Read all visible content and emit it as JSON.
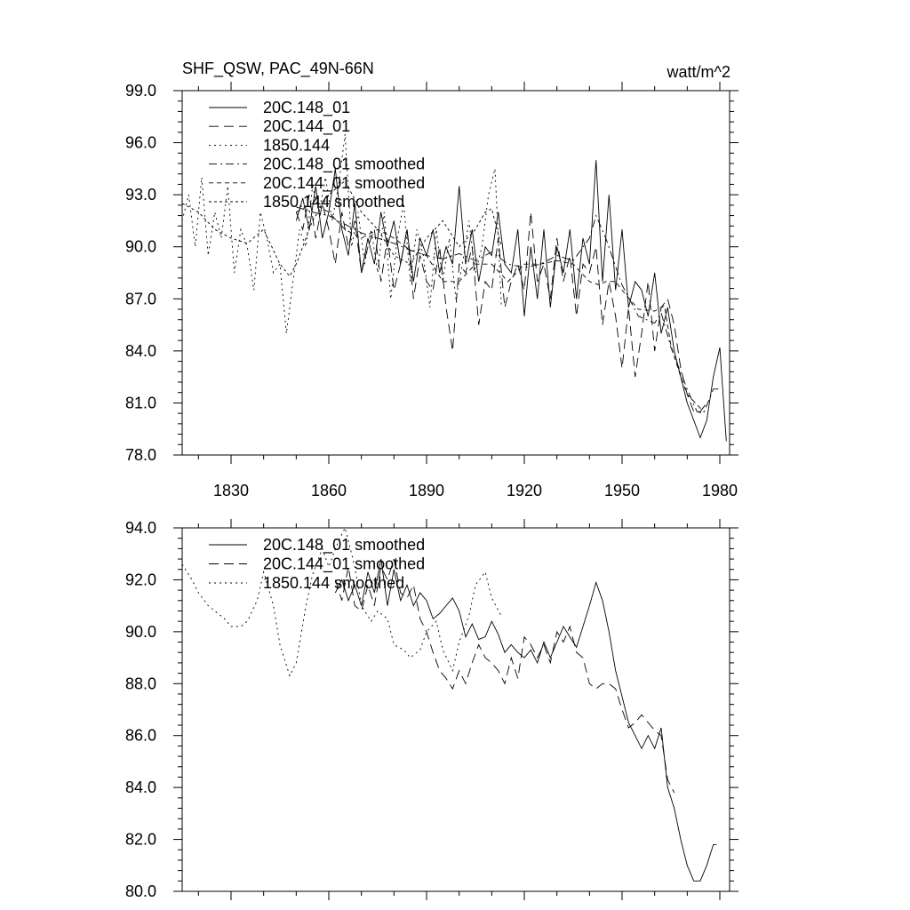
{
  "header": {
    "title": "SHF_QSW, PAC_49N-66N",
    "units": "watt/m^2"
  },
  "chart_data": [
    {
      "type": "line",
      "xlim": [
        1815,
        1983
      ],
      "ylim": [
        78.0,
        99.0
      ],
      "x_ticks": [
        1830,
        1860,
        1890,
        1920,
        1950,
        1980
      ],
      "x_tick_labels": [
        "1830",
        "1860",
        "1890",
        "1920",
        "1950",
        "1980"
      ],
      "y_ticks": [
        78.0,
        81.0,
        84.0,
        87.0,
        90.0,
        93.0,
        96.0,
        99.0
      ],
      "y_tick_labels": [
        "78.0",
        "81.0",
        "84.0",
        "87.0",
        "90.0",
        "93.0",
        "96.0",
        "99.0"
      ],
      "grid": false,
      "legend_position": "top-left",
      "series": [
        {
          "name": "20C.148_01",
          "dash": "solid",
          "x": [
            1850,
            1852,
            1854,
            1856,
            1858,
            1860,
            1862,
            1864,
            1866,
            1868,
            1870,
            1872,
            1874,
            1876,
            1878,
            1880,
            1882,
            1884,
            1886,
            1888,
            1890,
            1892,
            1894,
            1896,
            1898,
            1900,
            1902,
            1904,
            1906,
            1908,
            1910,
            1912,
            1914,
            1916,
            1918,
            1920,
            1922,
            1924,
            1926,
            1928,
            1930,
            1932,
            1934,
            1936,
            1938,
            1940,
            1942,
            1944,
            1946,
            1948,
            1950,
            1952,
            1954,
            1956,
            1958,
            1960,
            1962,
            1964,
            1966,
            1968,
            1970,
            1972,
            1974,
            1976,
            1978,
            1980,
            1982
          ],
          "y": [
            91.5,
            92.8,
            91.0,
            93.5,
            90.5,
            92.0,
            94.5,
            91.0,
            89.5,
            92.5,
            88.5,
            90.5,
            89.0,
            92.0,
            90.0,
            91.5,
            89.0,
            91.0,
            88.0,
            90.5,
            89.5,
            91.0,
            88.5,
            90.0,
            89.0,
            93.5,
            89.0,
            91.0,
            88.0,
            90.0,
            89.5,
            92.0,
            89.0,
            88.5,
            91.0,
            86.0,
            90.0,
            87.0,
            91.0,
            86.5,
            90.0,
            88.5,
            91.0,
            87.0,
            90.5,
            89.0,
            95.0,
            88.0,
            93.0,
            87.5,
            91.0,
            86.5,
            88.0,
            87.5,
            86.0,
            88.5,
            85.0,
            86.5,
            84.0,
            82.5,
            81.0,
            80.0,
            79.0,
            80.0,
            82.5,
            84.2,
            78.8
          ]
        },
        {
          "name": "20C.144_01",
          "dash": "long",
          "x": [
            1850,
            1852,
            1854,
            1856,
            1858,
            1860,
            1862,
            1864,
            1866,
            1868,
            1870,
            1872,
            1874,
            1876,
            1878,
            1880,
            1882,
            1884,
            1886,
            1888,
            1890,
            1892,
            1894,
            1896,
            1898,
            1900,
            1902,
            1904,
            1906,
            1908,
            1910,
            1912,
            1914,
            1916,
            1918,
            1920,
            1922,
            1924,
            1926,
            1928,
            1930,
            1932,
            1934,
            1936,
            1938,
            1940,
            1942,
            1944,
            1946,
            1948,
            1950,
            1952,
            1954,
            1956,
            1958,
            1960,
            1962,
            1964,
            1966,
            1968,
            1970,
            1972,
            1974,
            1976
          ],
          "y": [
            92.0,
            91.0,
            93.0,
            90.5,
            92.5,
            91.0,
            89.0,
            92.0,
            90.0,
            91.5,
            88.5,
            90.0,
            91.0,
            88.0,
            90.5,
            87.5,
            89.0,
            91.0,
            87.0,
            89.5,
            88.0,
            87.5,
            90.0,
            86.5,
            84.0,
            89.0,
            88.5,
            90.0,
            85.5,
            88.0,
            87.5,
            90.5,
            86.5,
            88.0,
            89.0,
            87.5,
            92.0,
            88.0,
            89.0,
            87.0,
            90.5,
            88.0,
            89.5,
            86.0,
            89.0,
            88.5,
            90.0,
            85.5,
            88.0,
            86.0,
            83.0,
            86.5,
            82.5,
            85.0,
            88.0,
            84.0,
            86.5,
            87.0,
            85.5,
            83.0,
            81.5,
            80.5,
            80.5,
            81.0
          ]
        },
        {
          "name": "1850.144",
          "dash": "dot",
          "x": [
            1815,
            1817,
            1819,
            1821,
            1823,
            1825,
            1827,
            1829,
            1831,
            1833,
            1835,
            1837,
            1839,
            1841,
            1843,
            1845,
            1847,
            1849,
            1851,
            1853,
            1855,
            1857,
            1859,
            1861,
            1863,
            1865,
            1867,
            1869,
            1871,
            1873,
            1875,
            1877,
            1879,
            1881,
            1883,
            1885,
            1887,
            1889,
            1891,
            1893,
            1895,
            1897,
            1899,
            1901,
            1903,
            1905,
            1907,
            1909,
            1911,
            1913
          ],
          "y": [
            91.5,
            93.0,
            90.0,
            94.0,
            89.5,
            92.0,
            90.5,
            93.5,
            88.5,
            91.0,
            90.0,
            87.5,
            92.0,
            90.5,
            88.5,
            89.0,
            85.0,
            88.0,
            91.0,
            90.0,
            93.5,
            92.0,
            94.0,
            91.5,
            93.5,
            96.5,
            90.0,
            92.0,
            89.0,
            91.0,
            88.5,
            92.0,
            87.0,
            90.5,
            92.5,
            88.0,
            91.0,
            89.5,
            86.5,
            91.0,
            88.0,
            90.5,
            87.0,
            89.0,
            91.5,
            88.5,
            90.0,
            93.0,
            94.5,
            86.5
          ]
        },
        {
          "name": "20C.148_01 smoothed",
          "dash": "dashdot",
          "x": [
            1850,
            1855,
            1860,
            1865,
            1870,
            1875,
            1880,
            1885,
            1890,
            1895,
            1900,
            1905,
            1910,
            1915,
            1920,
            1925,
            1930,
            1935,
            1940,
            1942,
            1945,
            1950,
            1955,
            1960,
            1962,
            1965,
            1970,
            1973,
            1975,
            1978,
            1980
          ],
          "y": [
            92.3,
            92.0,
            91.8,
            91.3,
            90.8,
            90.5,
            90.2,
            89.8,
            89.5,
            89.3,
            89.6,
            89.2,
            89.7,
            89.0,
            88.8,
            89.0,
            89.5,
            89.2,
            90.5,
            91.8,
            90.5,
            87.8,
            86.0,
            85.6,
            86.2,
            84.2,
            81.8,
            80.5,
            80.4,
            81.8,
            81.8
          ]
        },
        {
          "name": "20C.144_01 smoothed",
          "dash": "shortdash",
          "x": [
            1850,
            1855,
            1860,
            1865,
            1870,
            1875,
            1880,
            1885,
            1890,
            1895,
            1900,
            1905,
            1910,
            1915,
            1920,
            1925,
            1930,
            1935,
            1940,
            1943,
            1945,
            1948,
            1950,
            1955,
            1960,
            1963,
            1965,
            1968,
            1970,
            1975
          ],
          "y": [
            92.0,
            92.5,
            92.0,
            91.0,
            90.5,
            91.0,
            90.5,
            89.8,
            89.5,
            88.0,
            88.0,
            89.0,
            89.0,
            88.0,
            89.0,
            89.0,
            89.2,
            89.0,
            88.0,
            87.8,
            88.0,
            88.0,
            87.5,
            86.4,
            86.3,
            86.6,
            84.3,
            82.5,
            81.5,
            80.5
          ]
        },
        {
          "name": "1850.144 smoothed",
          "dash": "densedot",
          "x": [
            1815,
            1820,
            1825,
            1830,
            1835,
            1840,
            1845,
            1848,
            1850,
            1855,
            1860,
            1865,
            1870,
            1875,
            1880,
            1885,
            1890,
            1895,
            1900,
            1905,
            1908,
            1910,
            1913
          ],
          "y": [
            92.5,
            92.0,
            91.0,
            90.5,
            90.2,
            91.0,
            89.0,
            88.3,
            89.0,
            91.5,
            93.0,
            93.8,
            92.0,
            91.0,
            89.5,
            89.0,
            90.5,
            91.5,
            90.0,
            91.0,
            92.0,
            92.2,
            90.0
          ]
        }
      ]
    },
    {
      "type": "line",
      "xlim": [
        1815,
        1983
      ],
      "ylim": [
        80.0,
        94.0
      ],
      "x_ticks": [
        1830,
        1860,
        1890,
        1920,
        1950,
        1980
      ],
      "y_ticks": [
        80.0,
        82.0,
        84.0,
        86.0,
        88.0,
        90.0,
        92.0,
        94.0
      ],
      "y_tick_labels": [
        "80.0",
        "82.0",
        "84.0",
        "86.0",
        "88.0",
        "90.0",
        "92.0",
        "94.0"
      ],
      "grid": false,
      "legend_position": "top-left",
      "series": [
        {
          "name": "20C.148_01 smoothed",
          "dash": "solid",
          "x": [
            1862,
            1864,
            1866,
            1868,
            1870,
            1872,
            1874,
            1876,
            1878,
            1880,
            1882,
            1884,
            1886,
            1888,
            1890,
            1892,
            1894,
            1896,
            1898,
            1900,
            1902,
            1904,
            1906,
            1908,
            1910,
            1912,
            1914,
            1916,
            1918,
            1920,
            1922,
            1924,
            1926,
            1928,
            1930,
            1932,
            1934,
            1936,
            1938,
            1940,
            1942,
            1944,
            1946,
            1948,
            1950,
            1952,
            1954,
            1956,
            1958,
            1960,
            1962,
            1964,
            1966,
            1968,
            1970,
            1972,
            1974,
            1976,
            1978,
            1979
          ],
          "y": [
            91.5,
            92.0,
            91.2,
            91.8,
            91.0,
            92.3,
            91.5,
            92.8,
            91.0,
            92.4,
            91.2,
            91.8,
            91.0,
            91.5,
            91.2,
            90.5,
            90.7,
            91.0,
            91.3,
            90.8,
            89.8,
            90.3,
            89.7,
            89.8,
            90.4,
            89.9,
            89.2,
            89.5,
            89.2,
            89.0,
            89.3,
            88.8,
            89.6,
            89.0,
            89.6,
            90.2,
            89.8,
            89.4,
            90.2,
            91.0,
            91.9,
            91.2,
            90.0,
            88.5,
            87.5,
            86.5,
            86.0,
            85.5,
            86.0,
            85.5,
            86.3,
            84.0,
            83.2,
            82.0,
            81.0,
            80.4,
            80.4,
            81.0,
            81.8,
            81.8
          ]
        },
        {
          "name": "20C.144_01 smoothed",
          "dash": "long",
          "x": [
            1862,
            1864,
            1866,
            1868,
            1870,
            1872,
            1874,
            1876,
            1878,
            1880,
            1882,
            1884,
            1886,
            1888,
            1890,
            1892,
            1894,
            1896,
            1898,
            1900,
            1902,
            1904,
            1906,
            1908,
            1910,
            1912,
            1914,
            1916,
            1918,
            1920,
            1922,
            1924,
            1926,
            1928,
            1930,
            1932,
            1934,
            1936,
            1938,
            1940,
            1942,
            1944,
            1946,
            1948,
            1950,
            1952,
            1954,
            1956,
            1958,
            1960,
            1962,
            1964,
            1966
          ],
          "y": [
            92.0,
            91.2,
            92.5,
            91.0,
            90.8,
            91.8,
            91.0,
            92.5,
            92.0,
            92.8,
            91.5,
            91.3,
            91.8,
            90.5,
            90.0,
            89.2,
            88.5,
            88.2,
            87.8,
            88.5,
            88.0,
            88.8,
            89.5,
            89.0,
            88.8,
            88.5,
            88.0,
            89.0,
            88.2,
            89.8,
            89.5,
            89.0,
            89.5,
            88.8,
            90.0,
            89.6,
            90.2,
            89.2,
            89.0,
            88.0,
            87.8,
            88.0,
            88.0,
            87.8,
            87.0,
            86.3,
            86.5,
            86.8,
            86.5,
            86.2,
            86.0,
            84.3,
            83.8
          ]
        },
        {
          "name": "1850.144 smoothed",
          "dash": "dot",
          "x": [
            1815,
            1818,
            1820,
            1823,
            1825,
            1828,
            1830,
            1833,
            1835,
            1838,
            1840,
            1843,
            1845,
            1848,
            1850,
            1853,
            1855,
            1858,
            1860,
            1863,
            1865,
            1868,
            1870,
            1873,
            1875,
            1878,
            1880,
            1883,
            1885,
            1888,
            1890,
            1893,
            1895,
            1898,
            1900,
            1903,
            1905,
            1908,
            1910,
            1913
          ],
          "y": [
            92.6,
            92.0,
            91.5,
            91.0,
            90.8,
            90.5,
            90.2,
            90.2,
            90.4,
            91.2,
            92.3,
            91.0,
            89.5,
            88.3,
            88.8,
            91.0,
            92.2,
            93.2,
            92.5,
            93.5,
            94.0,
            92.5,
            91.0,
            90.4,
            90.8,
            90.5,
            89.5,
            89.3,
            89.0,
            89.3,
            90.0,
            90.4,
            89.3,
            88.5,
            89.6,
            90.6,
            91.8,
            92.3,
            91.3,
            90.6
          ]
        }
      ]
    }
  ]
}
